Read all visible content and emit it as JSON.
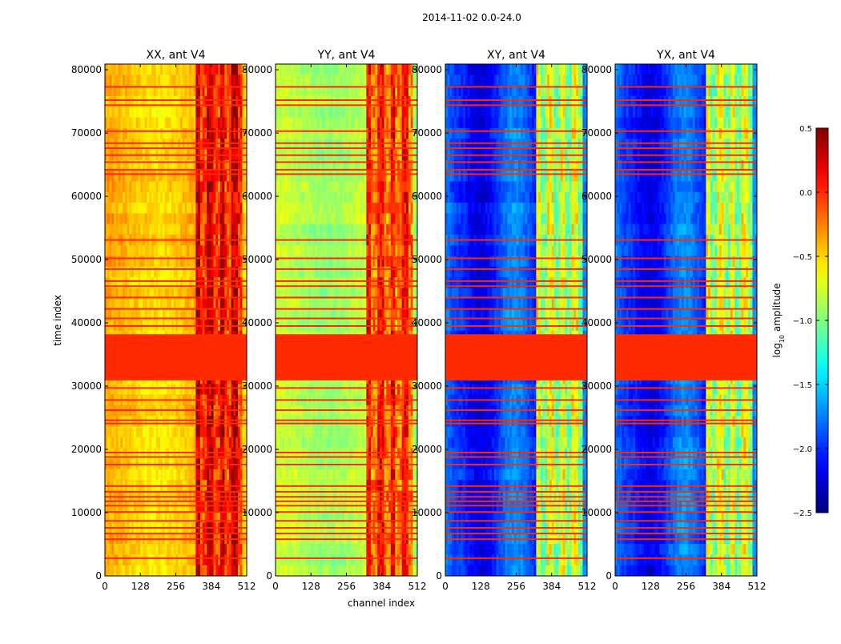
{
  "suptitle": "2014-11-02 0.0-24.0",
  "chart_data": {
    "type": "heatmap",
    "xlabel": "channel index",
    "ylabel": "time index",
    "xlim": [
      0,
      512
    ],
    "ylim": [
      0,
      80900
    ],
    "xticks": [
      0,
      128,
      256,
      384,
      512
    ],
    "xtick_labels": [
      "0",
      "128",
      "256",
      "384",
      "512"
    ],
    "yticks": [
      0,
      10000,
      20000,
      30000,
      40000,
      50000,
      60000,
      70000,
      80000
    ],
    "ytick_labels": [
      "0",
      "10000",
      "20000",
      "30000",
      "40000",
      "50000",
      "60000",
      "70000",
      "80000"
    ],
    "flagged_block": [
      30900,
      38200
    ],
    "flag_lines": [
      2800,
      5800,
      6700,
      7600,
      8700,
      10100,
      11100,
      11800,
      12500,
      13300,
      14200,
      17600,
      18800,
      19500,
      24100,
      24600,
      26200,
      27800,
      29700,
      39500,
      40700,
      42200,
      44000,
      45800,
      46600,
      48500,
      50200,
      53100,
      63500,
      64200,
      65400,
      66500,
      67600,
      68400,
      70300,
      74400,
      75200,
      77300
    ],
    "panels": [
      {
        "title": "XX, ant V4",
        "pol": "XX",
        "base_level": -0.45,
        "rfi_level": 0.05
      },
      {
        "title": "YY, ant V4",
        "pol": "YY",
        "base_level": -0.85,
        "rfi_level": -0.15
      },
      {
        "title": "XY, ant V4",
        "pol": "XY",
        "base_level": -1.95,
        "rfi_level": -0.9
      },
      {
        "title": "YX, ant V4",
        "pol": "YX",
        "base_level": -1.95,
        "rfi_level": -0.9
      }
    ],
    "colorbar": {
      "label_prefix": "log",
      "label_sub": "10",
      "label_suffix": " amplitude",
      "vmin": -2.5,
      "vmax": 0.5,
      "ticks": [
        0.5,
        0.0,
        -0.5,
        -1.0,
        -1.5,
        -2.0,
        -2.5
      ],
      "tick_labels": [
        "0.5",
        "0.0",
        "−0.5",
        "−1.0",
        "−1.5",
        "−2.0",
        "−2.5"
      ],
      "colormap": "jet"
    }
  }
}
